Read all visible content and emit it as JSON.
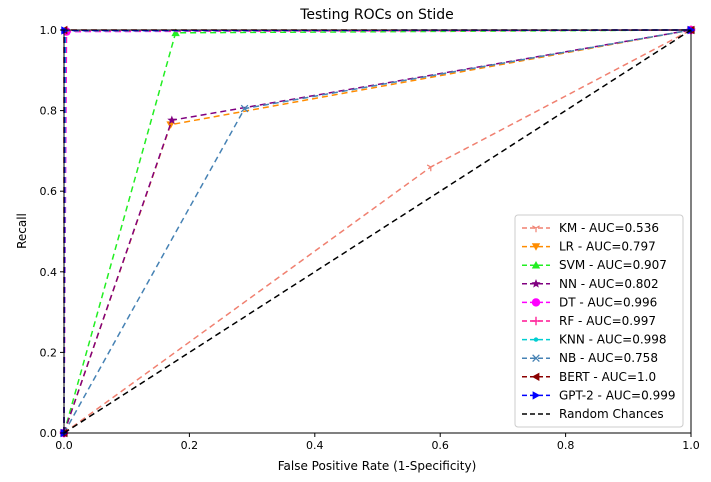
{
  "chart_data": {
    "type": "line",
    "title": "Testing ROCs on Stide",
    "xlabel": "False Positive Rate (1-Specificity)",
    "ylabel": "Recall",
    "xlim": [
      0,
      1
    ],
    "ylim": [
      0,
      1
    ],
    "xticks": [
      "0.0",
      "0.2",
      "0.4",
      "0.6",
      "0.8",
      "1.0"
    ],
    "yticks": [
      "0.0",
      "0.2",
      "0.4",
      "0.6",
      "0.8",
      "1.0"
    ],
    "grid": false,
    "legend_position": "lower-right",
    "series": [
      {
        "name": "KM - AUC=0.536",
        "color": "#f08070",
        "marker": "tri_down",
        "dash": "6,4",
        "x": [
          0,
          0.585,
          1
        ],
        "y": [
          0,
          0.66,
          1
        ]
      },
      {
        "name": "LR - AUC=0.797",
        "color": "#ff8c00",
        "marker": "triangle_down",
        "dash": "6,4",
        "x": [
          0,
          0.17,
          1
        ],
        "y": [
          0,
          0.765,
          1
        ]
      },
      {
        "name": "SVM - AUC=0.907",
        "color": "#22ee22",
        "marker": "triangle_up",
        "dash": "6,4",
        "x": [
          0,
          0.178,
          1
        ],
        "y": [
          0,
          0.993,
          1
        ]
      },
      {
        "name": "NN - AUC=0.802",
        "color": "#800080",
        "marker": "star",
        "dash": "6,4",
        "x": [
          0,
          0.172,
          1
        ],
        "y": [
          0,
          0.776,
          1
        ]
      },
      {
        "name": "DT - AUC=0.996",
        "color": "#ff00ff",
        "marker": "circle",
        "dash": "6,4",
        "x": [
          0,
          0.004,
          1
        ],
        "y": [
          0,
          0.996,
          1
        ]
      },
      {
        "name": "RF - AUC=0.997",
        "color": "#ff1493",
        "marker": "plus",
        "dash": "6,4",
        "x": [
          0,
          0.003,
          1
        ],
        "y": [
          0,
          0.997,
          1
        ]
      },
      {
        "name": "KNN - AUC=0.998",
        "color": "#00ced1",
        "marker": "point",
        "dash": "6,4",
        "x": [
          0,
          0.002,
          1
        ],
        "y": [
          0,
          0.998,
          1
        ]
      },
      {
        "name": "NB - AUC=0.758",
        "color": "#4682b4",
        "marker": "x",
        "dash": "6,4",
        "x": [
          0,
          0.288,
          1
        ],
        "y": [
          0,
          0.805,
          1
        ]
      },
      {
        "name": "BERT - AUC=1.0",
        "color": "#8b0000",
        "marker": "triangle_left",
        "dash": "6,4",
        "x": [
          0,
          0,
          1
        ],
        "y": [
          0,
          1.0,
          1
        ]
      },
      {
        "name": "GPT-2 - AUC=0.999",
        "color": "#0000ff",
        "marker": "triangle_right",
        "dash": "6,4",
        "x": [
          0,
          0.001,
          1
        ],
        "y": [
          0,
          0.999,
          1
        ]
      },
      {
        "name": "Random Chances",
        "color": "#000000",
        "marker": "none",
        "dash": "6,4",
        "x": [
          0,
          1
        ],
        "y": [
          0,
          1
        ]
      }
    ]
  }
}
